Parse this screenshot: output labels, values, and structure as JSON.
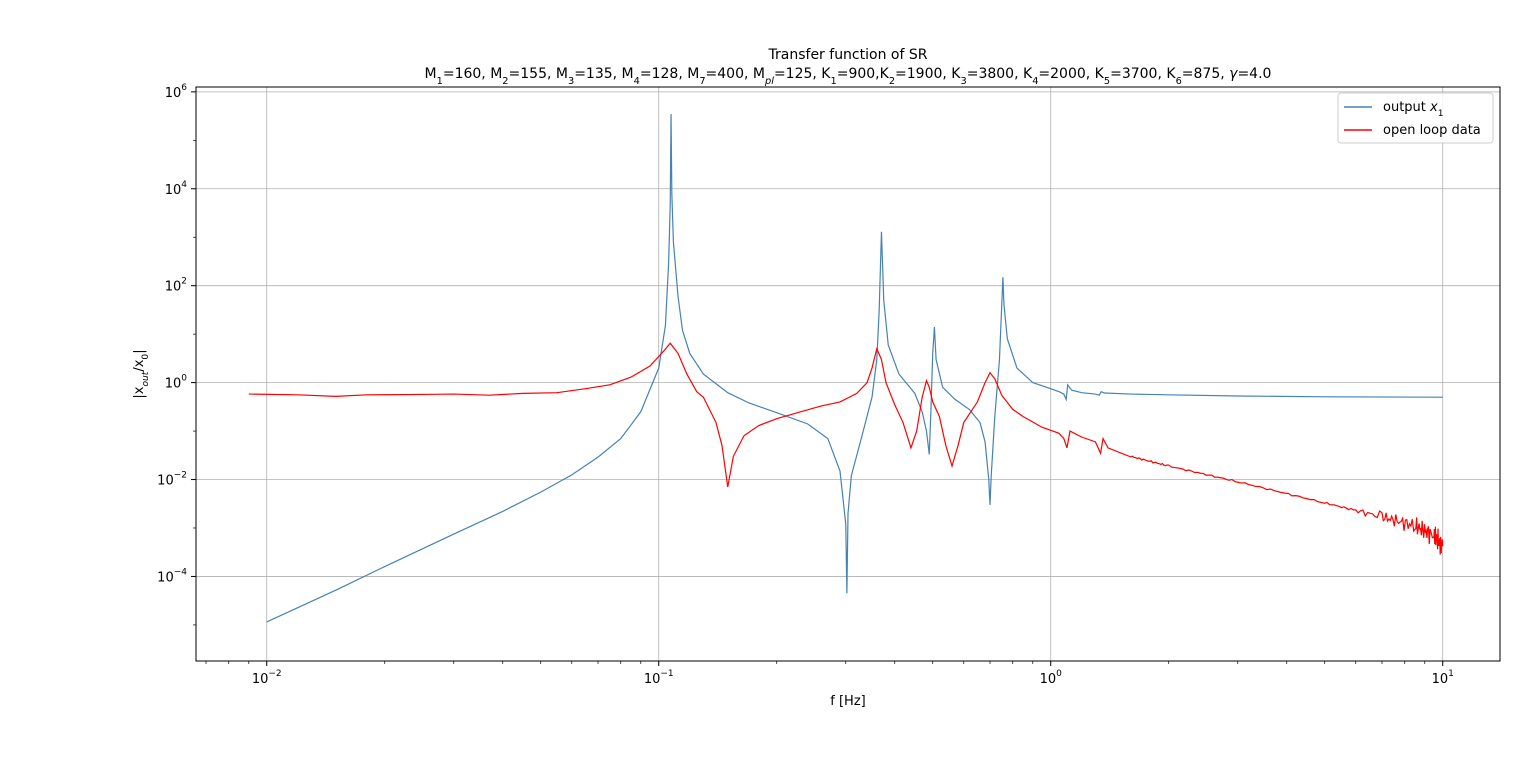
{
  "chart_data": {
    "type": "line",
    "title": "Transfer function of SR",
    "subtitle_parts": [
      {
        "t": "M"
      },
      {
        "t": "1",
        "sub": true
      },
      {
        "t": "=160, M"
      },
      {
        "t": "2",
        "sub": true
      },
      {
        "t": "=155, M"
      },
      {
        "t": "3",
        "sub": true
      },
      {
        "t": "=135, M"
      },
      {
        "t": "4",
        "sub": true
      },
      {
        "t": "=128, M"
      },
      {
        "t": "7",
        "sub": true
      },
      {
        "t": "=400, M"
      },
      {
        "t": "pl",
        "sub": true,
        "italic": true
      },
      {
        "t": "=125, K"
      },
      {
        "t": "1",
        "sub": true
      },
      {
        "t": "=900,K"
      },
      {
        "t": "2",
        "sub": true
      },
      {
        "t": "=1900, K"
      },
      {
        "t": "3",
        "sub": true
      },
      {
        "t": "=3800, K"
      },
      {
        "t": "4",
        "sub": true
      },
      {
        "t": "=2000, K"
      },
      {
        "t": "5",
        "sub": true
      },
      {
        "t": "=3700, K"
      },
      {
        "t": "6",
        "sub": true
      },
      {
        "t": "=875, "
      },
      {
        "t": "γ",
        "italic": true
      },
      {
        "t": "=4.0"
      }
    ],
    "xlabel": "f [Hz]",
    "ylabel_parts": [
      {
        "t": "|x"
      },
      {
        "t": "out",
        "sub": true,
        "italic": true
      },
      {
        "t": "/x"
      },
      {
        "t": "0",
        "sub": true
      },
      {
        "t": "|"
      }
    ],
    "xscale": "log",
    "yscale": "log",
    "xlim": [
      0.0066,
      14
    ],
    "ylim": [
      1.8e-06,
      1260000
    ],
    "grid": true,
    "legend_position": "top-right",
    "x_ticks": [
      {
        "value": 0.01,
        "base": "10",
        "exp": "−2"
      },
      {
        "value": 0.1,
        "base": "10",
        "exp": "−1"
      },
      {
        "value": 1,
        "base": "10",
        "exp": "0"
      },
      {
        "value": 10,
        "base": "10",
        "exp": "1"
      }
    ],
    "y_ticks": [
      {
        "value": 0.0001,
        "base": "10",
        "exp": "−4"
      },
      {
        "value": 0.01,
        "base": "10",
        "exp": "−2"
      },
      {
        "value": 1,
        "base": "10",
        "exp": "0"
      },
      {
        "value": 100,
        "base": "10",
        "exp": "2"
      },
      {
        "value": 10000,
        "base": "10",
        "exp": "4"
      },
      {
        "value": 1000000,
        "base": "10",
        "exp": "6"
      }
    ],
    "series": [
      {
        "name_parts": [
          {
            "t": "output "
          },
          {
            "t": "x",
            "italic": true
          },
          {
            "t": "1",
            "sub": true
          }
        ],
        "color": "#4682b4",
        "points": [
          [
            0.01,
            1.15e-05
          ],
          [
            0.015,
            5.2e-05
          ],
          [
            0.02,
            0.00016
          ],
          [
            0.03,
            0.00075
          ],
          [
            0.04,
            0.0022
          ],
          [
            0.05,
            0.0055
          ],
          [
            0.06,
            0.0125
          ],
          [
            0.07,
            0.029
          ],
          [
            0.08,
            0.07
          ],
          [
            0.09,
            0.25
          ],
          [
            0.1,
            2.0
          ],
          [
            0.104,
            15
          ],
          [
            0.106,
            300
          ],
          [
            0.107,
            5000
          ],
          [
            0.1075,
            350000
          ],
          [
            0.108,
            8000
          ],
          [
            0.109,
            800
          ],
          [
            0.112,
            60
          ],
          [
            0.115,
            12
          ],
          [
            0.12,
            4.0
          ],
          [
            0.13,
            1.5
          ],
          [
            0.15,
            0.62
          ],
          [
            0.17,
            0.38
          ],
          [
            0.2,
            0.24
          ],
          [
            0.24,
            0.14
          ],
          [
            0.27,
            0.07
          ],
          [
            0.29,
            0.015
          ],
          [
            0.3,
            0.0012
          ],
          [
            0.302,
            4.5e-05
          ],
          [
            0.304,
            0.002
          ],
          [
            0.31,
            0.012
          ],
          [
            0.33,
            0.08
          ],
          [
            0.35,
            0.5
          ],
          [
            0.36,
            3.0
          ],
          [
            0.365,
            30
          ],
          [
            0.37,
            1300
          ],
          [
            0.375,
            50
          ],
          [
            0.385,
            6.0
          ],
          [
            0.41,
            1.5
          ],
          [
            0.45,
            0.6
          ],
          [
            0.47,
            0.25
          ],
          [
            0.482,
            0.1
          ],
          [
            0.49,
            0.033
          ],
          [
            0.495,
            0.3
          ],
          [
            0.5,
            4.0
          ],
          [
            0.505,
            14
          ],
          [
            0.51,
            3.0
          ],
          [
            0.53,
            0.8
          ],
          [
            0.57,
            0.45
          ],
          [
            0.62,
            0.28
          ],
          [
            0.66,
            0.15
          ],
          [
            0.68,
            0.06
          ],
          [
            0.695,
            0.01
          ],
          [
            0.7,
            0.003
          ],
          [
            0.705,
            0.012
          ],
          [
            0.72,
            0.2
          ],
          [
            0.74,
            3.0
          ],
          [
            0.75,
            40
          ],
          [
            0.755,
            150
          ],
          [
            0.76,
            40
          ],
          [
            0.775,
            8.0
          ],
          [
            0.82,
            2.0
          ],
          [
            0.9,
            1.0
          ],
          [
            1.0,
            0.75
          ],
          [
            1.05,
            0.65
          ],
          [
            1.08,
            0.58
          ],
          [
            1.095,
            0.45
          ],
          [
            1.105,
            0.9
          ],
          [
            1.13,
            0.7
          ],
          [
            1.2,
            0.62
          ],
          [
            1.3,
            0.58
          ],
          [
            1.33,
            0.55
          ],
          [
            1.345,
            0.65
          ],
          [
            1.37,
            0.61
          ],
          [
            1.6,
            0.58
          ],
          [
            2.0,
            0.56
          ],
          [
            3.0,
            0.53
          ],
          [
            5.0,
            0.51
          ],
          [
            10.0,
            0.5
          ]
        ]
      },
      {
        "name_parts": [
          {
            "t": "open loop data"
          }
        ],
        "color": "#ff0000",
        "points": [
          [
            0.009,
            0.58
          ],
          [
            0.012,
            0.56
          ],
          [
            0.015,
            0.52
          ],
          [
            0.018,
            0.56
          ],
          [
            0.025,
            0.57
          ],
          [
            0.03,
            0.58
          ],
          [
            0.037,
            0.55
          ],
          [
            0.045,
            0.6
          ],
          [
            0.055,
            0.62
          ],
          [
            0.065,
            0.75
          ],
          [
            0.075,
            0.9
          ],
          [
            0.085,
            1.3
          ],
          [
            0.095,
            2.2
          ],
          [
            0.103,
            4.5
          ],
          [
            0.107,
            6.5
          ],
          [
            0.112,
            4.0
          ],
          [
            0.118,
            1.5
          ],
          [
            0.125,
            0.65
          ],
          [
            0.13,
            0.5
          ],
          [
            0.14,
            0.15
          ],
          [
            0.145,
            0.05
          ],
          [
            0.15,
            0.007
          ],
          [
            0.155,
            0.03
          ],
          [
            0.165,
            0.08
          ],
          [
            0.18,
            0.13
          ],
          [
            0.2,
            0.18
          ],
          [
            0.23,
            0.25
          ],
          [
            0.26,
            0.33
          ],
          [
            0.29,
            0.4
          ],
          [
            0.32,
            0.6
          ],
          [
            0.34,
            1.0
          ],
          [
            0.35,
            2.0
          ],
          [
            0.36,
            5.0
          ],
          [
            0.37,
            3.0
          ],
          [
            0.38,
            1.0
          ],
          [
            0.4,
            0.35
          ],
          [
            0.42,
            0.15
          ],
          [
            0.44,
            0.045
          ],
          [
            0.455,
            0.1
          ],
          [
            0.47,
            0.5
          ],
          [
            0.482,
            1.1
          ],
          [
            0.49,
            0.8
          ],
          [
            0.5,
            0.4
          ],
          [
            0.52,
            0.2
          ],
          [
            0.54,
            0.05
          ],
          [
            0.56,
            0.019
          ],
          [
            0.58,
            0.05
          ],
          [
            0.6,
            0.15
          ],
          [
            0.65,
            0.4
          ],
          [
            0.68,
            1.0
          ],
          [
            0.7,
            1.6
          ],
          [
            0.72,
            1.2
          ],
          [
            0.75,
            0.55
          ],
          [
            0.8,
            0.28
          ],
          [
            0.85,
            0.2
          ],
          [
            0.95,
            0.12
          ],
          [
            1.05,
            0.09
          ],
          [
            1.08,
            0.07
          ],
          [
            1.1,
            0.045
          ],
          [
            1.12,
            0.1
          ],
          [
            1.2,
            0.075
          ],
          [
            1.3,
            0.06
          ],
          [
            1.34,
            0.035
          ],
          [
            1.36,
            0.07
          ],
          [
            1.4,
            0.045
          ],
          [
            1.6,
            0.03
          ],
          [
            2.0,
            0.019
          ],
          [
            3.0,
            0.009
          ],
          [
            5.0,
            0.0033
          ],
          [
            7.0,
            0.0017
          ],
          [
            8.5,
            0.0011
          ],
          [
            9.5,
            0.0007
          ],
          [
            10.0,
            0.00042
          ]
        ]
      }
    ]
  }
}
